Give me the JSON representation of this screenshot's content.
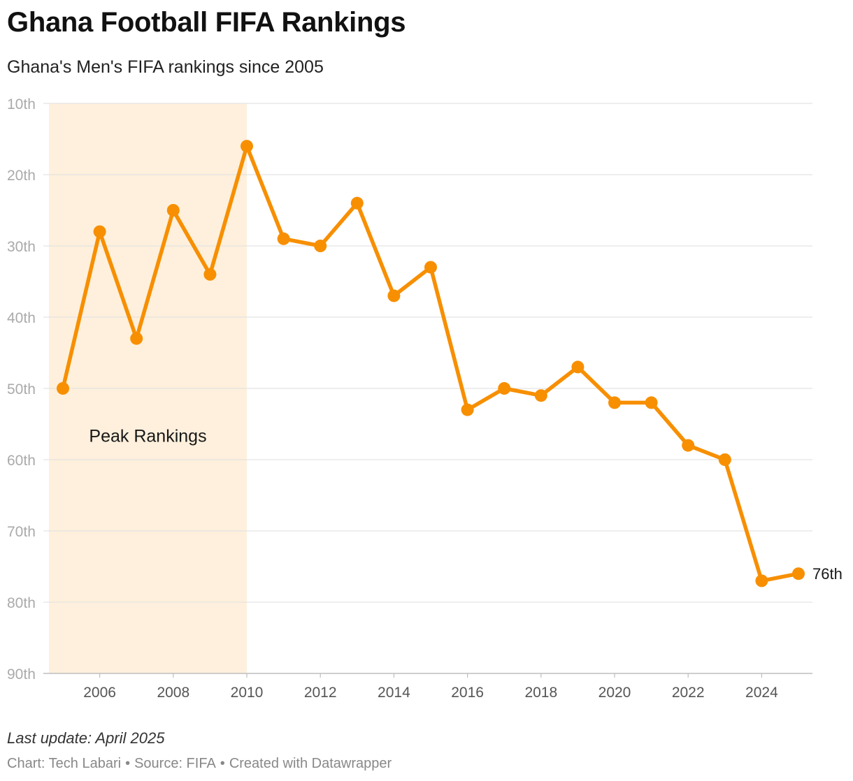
{
  "title": "Ghana Football FIFA Rankings",
  "subtitle": "Ghana's Men's FIFA rankings since 2005",
  "chart_data": {
    "type": "line",
    "x": [
      2005,
      2006,
      2007,
      2008,
      2009,
      2010,
      2011,
      2012,
      2013,
      2014,
      2015,
      2016,
      2017,
      2018,
      2019,
      2020,
      2021,
      2022,
      2023,
      2024,
      2025
    ],
    "series": [
      {
        "values": [
          50,
          28,
          43,
          25,
          34,
          16,
          29,
          30,
          24,
          37,
          33,
          53,
          50,
          51,
          47,
          52,
          52,
          58,
          60,
          77,
          76
        ],
        "color": "#f78f00"
      }
    ],
    "y_axis": {
      "reversed": true,
      "ylim": [
        10,
        90
      ],
      "ticks": [
        10,
        20,
        30,
        40,
        50,
        60,
        70,
        80,
        90
      ],
      "tick_labels": [
        "10th",
        "20th",
        "30th",
        "40th",
        "50th",
        "60th",
        "70th",
        "80th",
        "90th"
      ]
    },
    "x_axis": {
      "xlim": [
        2005,
        2025
      ],
      "ticks": [
        2006,
        2008,
        2010,
        2012,
        2014,
        2016,
        2018,
        2020,
        2022,
        2024
      ],
      "tick_labels": [
        "2006",
        "2008",
        "2010",
        "2012",
        "2014",
        "2016",
        "2018",
        "2020",
        "2022",
        "2024"
      ]
    },
    "highlight_range": {
      "x_start": 2005,
      "x_end": 2010,
      "label": "Peak Rankings",
      "color": "#fef0dc"
    },
    "end_label": "76th",
    "grid": true,
    "legend": "none"
  },
  "footer": {
    "last_update": "Last update: April 2025",
    "chart_by": "Chart: Tech Labari",
    "source": "Source: FIFA",
    "created_with": "Created with Datawrapper",
    "separator": "•"
  }
}
